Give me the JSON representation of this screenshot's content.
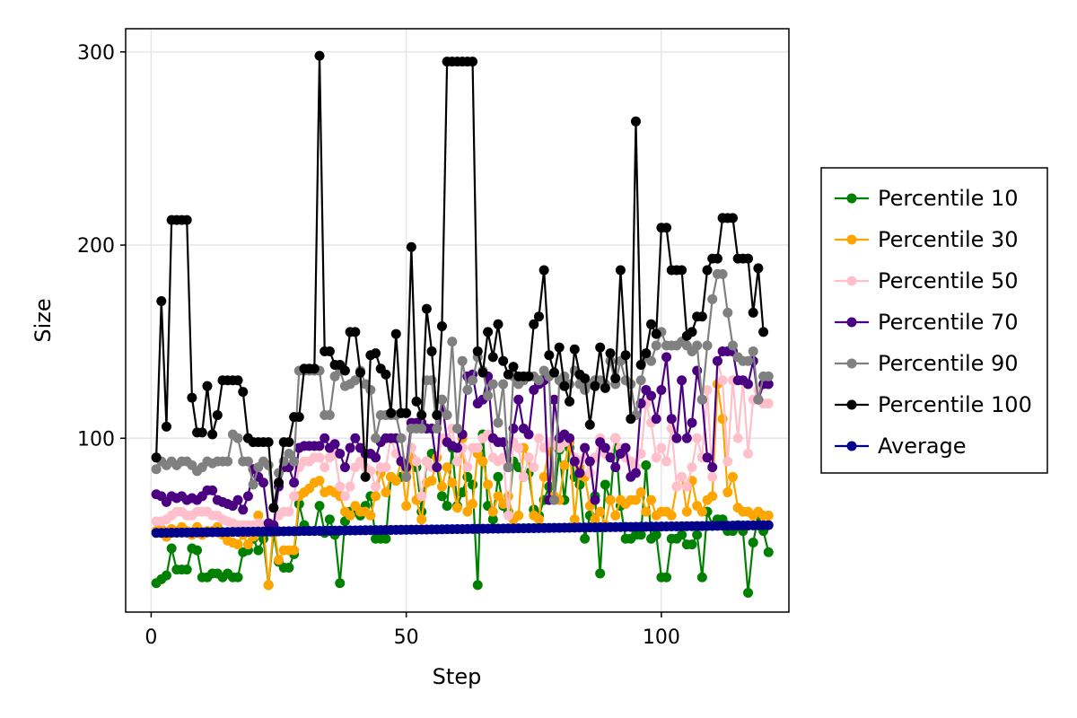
{
  "chart_data": {
    "type": "line",
    "title": "",
    "xlabel": "Step",
    "ylabel": "Size",
    "xlim": [
      -5,
      125
    ],
    "ylim": [
      10,
      312
    ],
    "xticks": [
      0,
      50,
      100
    ],
    "yticks": [
      100,
      200,
      300
    ],
    "xtick_labels": [
      "0",
      "50",
      "100"
    ],
    "ytick_labels": [
      "100",
      "200",
      "300"
    ],
    "grid": true,
    "legend_position": "right",
    "series": [
      {
        "name": "Percentile 10",
        "color": "#008000",
        "values": [
          25,
          27,
          29,
          43,
          32,
          32,
          32,
          43,
          42,
          28,
          28,
          30,
          30,
          28,
          30,
          28,
          28,
          41,
          42,
          48,
          42,
          48,
          24,
          51,
          36,
          33,
          33,
          40,
          66,
          55,
          52,
          52,
          65,
          51,
          58,
          50,
          25,
          57,
          62,
          62,
          60,
          65,
          70,
          48,
          48,
          48,
          80,
          78,
          80,
          80,
          90,
          85,
          62,
          88,
          92,
          85,
          70,
          65,
          95,
          65,
          72,
          80,
          76,
          24,
          102,
          65,
          58,
          80,
          65,
          62,
          88,
          85,
          80,
          82,
          63,
          60,
          68,
          75,
          68,
          94,
          68,
          95,
          80,
          76,
          48,
          60,
          70,
          30,
          76,
          68,
          100,
          65,
          48,
          48,
          50,
          50,
          86,
          48,
          50,
          28,
          28,
          48,
          48,
          50,
          45,
          45,
          50,
          28,
          62,
          55,
          58,
          58,
          52,
          52,
          55,
          52,
          20,
          46,
          60,
          52,
          41
        ]
      },
      {
        "name": "Percentile 30",
        "color": "#ffa500",
        "values": [
          52,
          53,
          49,
          53,
          52,
          54,
          52,
          50,
          54,
          50,
          52,
          52,
          54,
          50,
          47,
          46,
          45,
          50,
          45,
          49,
          60,
          55,
          24,
          55,
          37,
          42,
          42,
          42,
          70,
          72,
          74,
          77,
          78,
          72,
          73,
          72,
          70,
          62,
          60,
          65,
          62,
          62,
          60,
          70,
          82,
          72,
          80,
          78,
          88,
          65,
          90,
          68,
          58,
          77,
          78,
          90,
          75,
          85,
          77,
          64,
          100,
          62,
          66,
          92,
          88,
          76,
          62,
          70,
          66,
          70,
          58,
          60,
          95,
          90,
          60,
          58,
          80,
          95,
          70,
          68,
          86,
          98,
          58,
          85,
          80,
          65,
          58,
          62,
          55,
          68,
          60,
          68,
          66,
          68,
          68,
          72,
          62,
          68,
          60,
          62,
          62,
          60,
          75,
          80,
          62,
          78,
          65,
          62,
          68,
          70,
          128,
          110,
          72,
          80,
          64,
          62,
          62,
          60,
          62,
          60,
          60
        ]
      },
      {
        "name": "Percentile 50",
        "color": "#ffc0cb",
        "values": [
          57,
          57,
          58,
          60,
          62,
          62,
          60,
          60,
          62,
          62,
          62,
          60,
          60,
          58,
          57,
          56,
          55,
          55,
          55,
          55,
          56,
          55,
          55,
          55,
          60,
          62,
          62,
          70,
          85,
          88,
          88,
          90,
          90,
          85,
          90,
          92,
          75,
          70,
          75,
          85,
          88,
          85,
          83,
          75,
          85,
          85,
          100,
          92,
          88,
          85,
          95,
          88,
          70,
          88,
          85,
          85,
          100,
          100,
          105,
          88,
          95,
          85,
          95,
          95,
          100,
          102,
          90,
          88,
          90,
          60,
          98,
          95,
          80,
          90,
          85,
          100,
          95,
          98,
          98,
          95,
          98,
          100,
          90,
          88,
          90,
          82,
          90,
          100,
          92,
          90,
          100,
          95,
          90,
          88,
          85,
          92,
          118,
          108,
          90,
          95,
          88,
          105,
          75,
          80,
          75,
          85,
          100,
          90,
          125,
          80,
          140,
          130,
          88,
          130,
          100,
          130,
          92,
          120,
          125,
          118,
          118
        ]
      },
      {
        "name": "Percentile 70",
        "color": "#4b0082",
        "values": [
          71,
          70,
          67,
          70,
          69,
          70,
          68,
          69,
          68,
          70,
          73,
          73,
          68,
          67,
          66,
          65,
          68,
          63,
          70,
          84,
          80,
          77,
          56,
          55,
          75,
          85,
          85,
          77,
          95,
          96,
          96,
          96,
          96,
          100,
          95,
          97,
          92,
          85,
          95,
          100,
          95,
          92,
          92,
          90,
          98,
          100,
          100,
          100,
          88,
          85,
          108,
          108,
          108,
          105,
          105,
          85,
          120,
          98,
          96,
          95,
          102,
          132,
          133,
          118,
          120,
          132,
          100,
          98,
          98,
          85,
          105,
          120,
          105,
          102,
          125,
          128,
          130,
          68,
          120,
          100,
          102,
          100,
          88,
          82,
          95,
          88,
          68,
          98,
          95,
          90,
          85,
          92,
          95,
          80,
          82,
          118,
          125,
          122,
          110,
          125,
          142,
          110,
          100,
          130,
          100,
          108,
          135,
          120,
          90,
          85,
          140,
          145,
          145,
          145,
          130,
          130,
          128,
          140,
          120,
          128,
          128
        ]
      },
      {
        "name": "Percentile 90",
        "color": "#808080",
        "values": [
          84,
          88,
          86,
          88,
          86,
          88,
          88,
          86,
          83,
          85,
          88,
          87,
          88,
          88,
          88,
          102,
          100,
          88,
          88,
          76,
          85,
          88,
          86,
          64,
          82,
          88,
          92,
          88,
          135,
          135,
          135,
          135,
          135,
          112,
          112,
          132,
          135,
          127,
          128,
          130,
          135,
          128,
          125,
          100,
          112,
          112,
          112,
          112,
          100,
          80,
          105,
          105,
          105,
          130,
          130,
          105,
          120,
          112,
          150,
          105,
          140,
          125,
          130,
          142,
          135,
          122,
          128,
          108,
          128,
          85,
          132,
          128,
          130,
          132,
          132,
          130,
          135,
          132,
          68,
          130,
          132,
          128,
          135,
          128,
          125,
          128,
          130,
          130,
          128,
          140,
          128,
          140,
          130,
          128,
          112,
          130,
          142,
          140,
          148,
          155,
          148,
          148,
          148,
          150,
          148,
          145,
          148,
          120,
          148,
          172,
          185,
          185,
          165,
          148,
          142,
          140,
          140,
          145,
          120,
          132,
          132
        ]
      },
      {
        "name": "Percentile 100",
        "color": "#000000",
        "values": [
          90,
          171,
          106,
          213,
          213,
          213,
          213,
          121,
          103,
          103,
          127,
          102,
          112,
          130,
          130,
          130,
          130,
          124,
          100,
          98,
          98,
          98,
          98,
          64,
          77,
          98,
          98,
          111,
          111,
          136,
          136,
          136,
          298,
          145,
          145,
          138,
          138,
          135,
          155,
          155,
          134,
          80,
          143,
          144,
          136,
          133,
          113,
          154,
          113,
          113,
          199,
          119,
          112,
          167,
          145,
          112,
          158,
          295,
          295,
          295,
          295,
          295,
          295,
          145,
          134,
          155,
          142,
          159,
          140,
          133,
          137,
          132,
          132,
          132,
          159,
          163,
          187,
          143,
          134,
          147,
          127,
          119,
          146,
          133,
          131,
          107,
          127,
          147,
          126,
          144,
          131,
          187,
          143,
          110,
          264,
          138,
          144,
          159,
          154,
          209,
          209,
          187,
          187,
          187,
          153,
          155,
          163,
          163,
          187,
          193,
          193,
          214,
          214,
          214,
          193,
          193,
          193,
          165,
          188,
          155
        ]
      },
      {
        "name": "Average",
        "color": "#00008b",
        "values": [
          51,
          51.03,
          51.07,
          51.1,
          51.13,
          51.17,
          51.2,
          51.23,
          51.27,
          51.3,
          51.33,
          51.37,
          51.4,
          51.43,
          51.47,
          51.5,
          51.53,
          51.57,
          51.6,
          51.63,
          51.67,
          51.7,
          51.73,
          51.77,
          51.8,
          51.83,
          51.87,
          51.9,
          51.93,
          51.97,
          52,
          52.03,
          52.07,
          52.1,
          52.13,
          52.17,
          52.2,
          52.23,
          52.27,
          52.3,
          52.33,
          52.37,
          52.4,
          52.43,
          52.47,
          52.5,
          52.53,
          52.57,
          52.6,
          52.63,
          52.67,
          52.7,
          52.73,
          52.77,
          52.8,
          52.83,
          52.87,
          52.9,
          52.93,
          52.97,
          53,
          53.03,
          53.07,
          53.1,
          53.13,
          53.17,
          53.2,
          53.23,
          53.27,
          53.3,
          53.33,
          53.37,
          53.4,
          53.43,
          53.47,
          53.5,
          53.53,
          53.57,
          53.6,
          53.63,
          53.67,
          53.7,
          53.73,
          53.77,
          53.8,
          53.83,
          53.87,
          53.9,
          53.93,
          53.97,
          54,
          54.03,
          54.07,
          54.1,
          54.13,
          54.17,
          54.2,
          54.23,
          54.27,
          54.3,
          54.33,
          54.37,
          54.4,
          54.43,
          54.47,
          54.5,
          54.53,
          54.57,
          54.6,
          54.63,
          54.67,
          54.7,
          54.73,
          54.77,
          54.8,
          54.83,
          54.87,
          54.9,
          54.93,
          54.97,
          55
        ]
      }
    ]
  }
}
